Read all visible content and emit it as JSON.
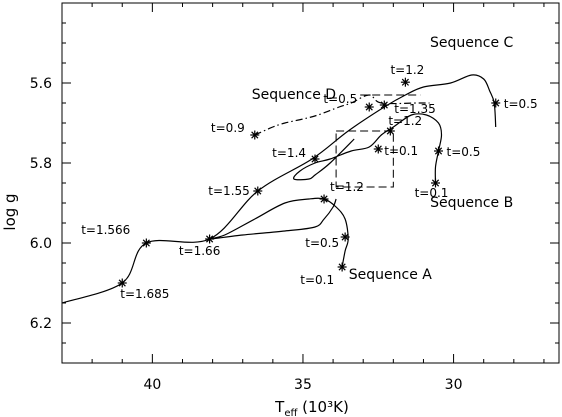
{
  "chart_data": {
    "type": "line",
    "xlabel_main": "T",
    "xlabel_sub": "eff",
    "xlabel_unit": " (10³K)",
    "ylabel": "log g",
    "xlim": [
      43,
      26.5
    ],
    "ylim": [
      6.3,
      5.4
    ],
    "x_ticks": [
      {
        "value": 40,
        "label": "40"
      },
      {
        "value": 35,
        "label": "35"
      },
      {
        "value": 30,
        "label": "30"
      }
    ],
    "y_ticks": [
      {
        "value": 5.6,
        "label": "5.6"
      },
      {
        "value": 5.8,
        "label": "5.8"
      },
      {
        "value": 6.0,
        "label": "6.0"
      },
      {
        "value": 6.2,
        "label": "6.2"
      }
    ],
    "series": [
      {
        "name": "Sequence A",
        "style": "solid",
        "x": [
          33.7,
          33.6,
          33.5,
          33.6,
          33.9,
          34.3,
          34.8,
          35.6,
          36.6,
          37.6,
          38.1,
          37.0,
          35.6,
          34.6,
          34.3,
          34.0,
          33.9
        ],
        "y": [
          6.06,
          6.02,
          5.99,
          5.94,
          5.91,
          5.89,
          5.89,
          5.9,
          5.94,
          5.98,
          5.99,
          5.98,
          5.97,
          5.96,
          5.94,
          5.91,
          5.89
        ]
      },
      {
        "name": "Sequence B",
        "style": "solid",
        "x": [
          30.6,
          30.6,
          30.5,
          30.4,
          30.5,
          30.9,
          31.4,
          32.0,
          32.4,
          32.8,
          33.4,
          34.1,
          34.6,
          35.1,
          35.3,
          34.8,
          34.6,
          34.1,
          33.3
        ],
        "y": [
          5.85,
          5.81,
          5.77,
          5.73,
          5.7,
          5.68,
          5.68,
          5.71,
          5.73,
          5.76,
          5.77,
          5.79,
          5.8,
          5.82,
          5.84,
          5.84,
          5.83,
          5.8,
          5.74
        ]
      },
      {
        "name": "Sequence C",
        "style": "solid",
        "x": [
          43,
          41.0,
          40.2,
          38.1,
          36.5,
          34.7,
          33.5,
          32.3,
          31.6,
          31.0,
          30.1,
          29.4,
          29.0,
          28.8,
          28.65,
          28.6
        ],
        "y": [
          6.15,
          6.1,
          6.0,
          5.99,
          5.87,
          5.79,
          5.72,
          5.66,
          5.63,
          5.61,
          5.6,
          5.58,
          5.59,
          5.62,
          5.65,
          5.71
        ]
      },
      {
        "name": "Sequence D",
        "style": "dashdot",
        "x": [
          36.6,
          36.0,
          35.6,
          35.0,
          34.5,
          33.8,
          33.4,
          32.8,
          32.4,
          31.2,
          30.8
        ],
        "y": [
          5.73,
          5.71,
          5.7,
          5.69,
          5.68,
          5.66,
          5.65,
          5.63,
          5.65,
          5.65,
          5.65
        ]
      }
    ],
    "markers": [
      {
        "x": 33.7,
        "y": 6.06,
        "label": "t=0.1"
      },
      {
        "x": 33.6,
        "y": 5.985,
        "label": "t=0.5"
      },
      {
        "x": 34.3,
        "y": 5.89,
        "label": "t=1.2"
      },
      {
        "x": 38.1,
        "y": 5.99,
        "label": "t=1.66"
      },
      {
        "x": 30.6,
        "y": 5.85,
        "label": "t=0.1"
      },
      {
        "x": 30.5,
        "y": 5.77,
        "label": "t=0.5"
      },
      {
        "x": 32.1,
        "y": 5.72,
        "label": "t=1.2"
      },
      {
        "x": 32.5,
        "y": 5.765,
        "label": "t=0.1"
      },
      {
        "x": 41.0,
        "y": 6.1,
        "label": "t=1.685"
      },
      {
        "x": 40.2,
        "y": 6.0,
        "label": "t=1.566"
      },
      {
        "x": 36.5,
        "y": 5.87,
        "label": "t=1.55"
      },
      {
        "x": 34.6,
        "y": 5.79,
        "label": "t=1.4"
      },
      {
        "x": 32.3,
        "y": 5.655,
        "label": "t=1.35"
      },
      {
        "x": 31.6,
        "y": 5.598,
        "label": "t=1.2"
      },
      {
        "x": 28.6,
        "y": 5.65,
        "label": "t=0.5"
      },
      {
        "x": 36.6,
        "y": 5.73,
        "label": "t=0.9"
      },
      {
        "x": 32.8,
        "y": 5.66,
        "label": "t=0.5"
      }
    ],
    "sequence_labels": [
      {
        "text": "Sequence A",
        "x": 32.1,
        "y": 6.09
      },
      {
        "text": "Sequence B",
        "x": 29.4,
        "y": 5.91
      },
      {
        "text": "Sequence C",
        "x": 29.4,
        "y": 5.51
      },
      {
        "text": "Sequence D",
        "x": 35.3,
        "y": 5.64
      }
    ],
    "dashed_box": {
      "x_range": [
        33.9,
        32.0
      ],
      "y_range": [
        5.72,
        5.86
      ]
    },
    "dashed_guide": {
      "x": [
        33.1,
        31.1
      ],
      "y": [
        5.63,
        5.63
      ]
    }
  }
}
